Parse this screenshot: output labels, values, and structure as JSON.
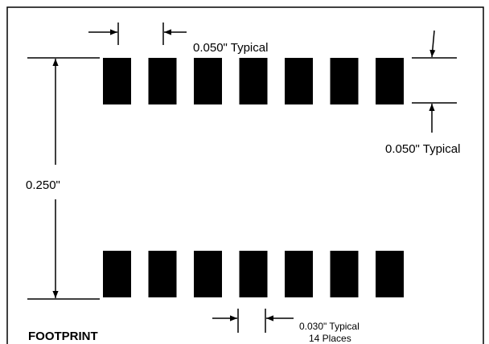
{
  "labels": {
    "pad_width": "0.050\" Typical",
    "pad_spacing": "0.050\" Typical",
    "row_distance": "0.250\"",
    "pad_gap": "0.030\" Typical",
    "pad_gap_count": "14 Places",
    "title": "FOOTPRINT"
  },
  "colors": {
    "ink": "#000000",
    "paper": "#ffffff"
  }
}
